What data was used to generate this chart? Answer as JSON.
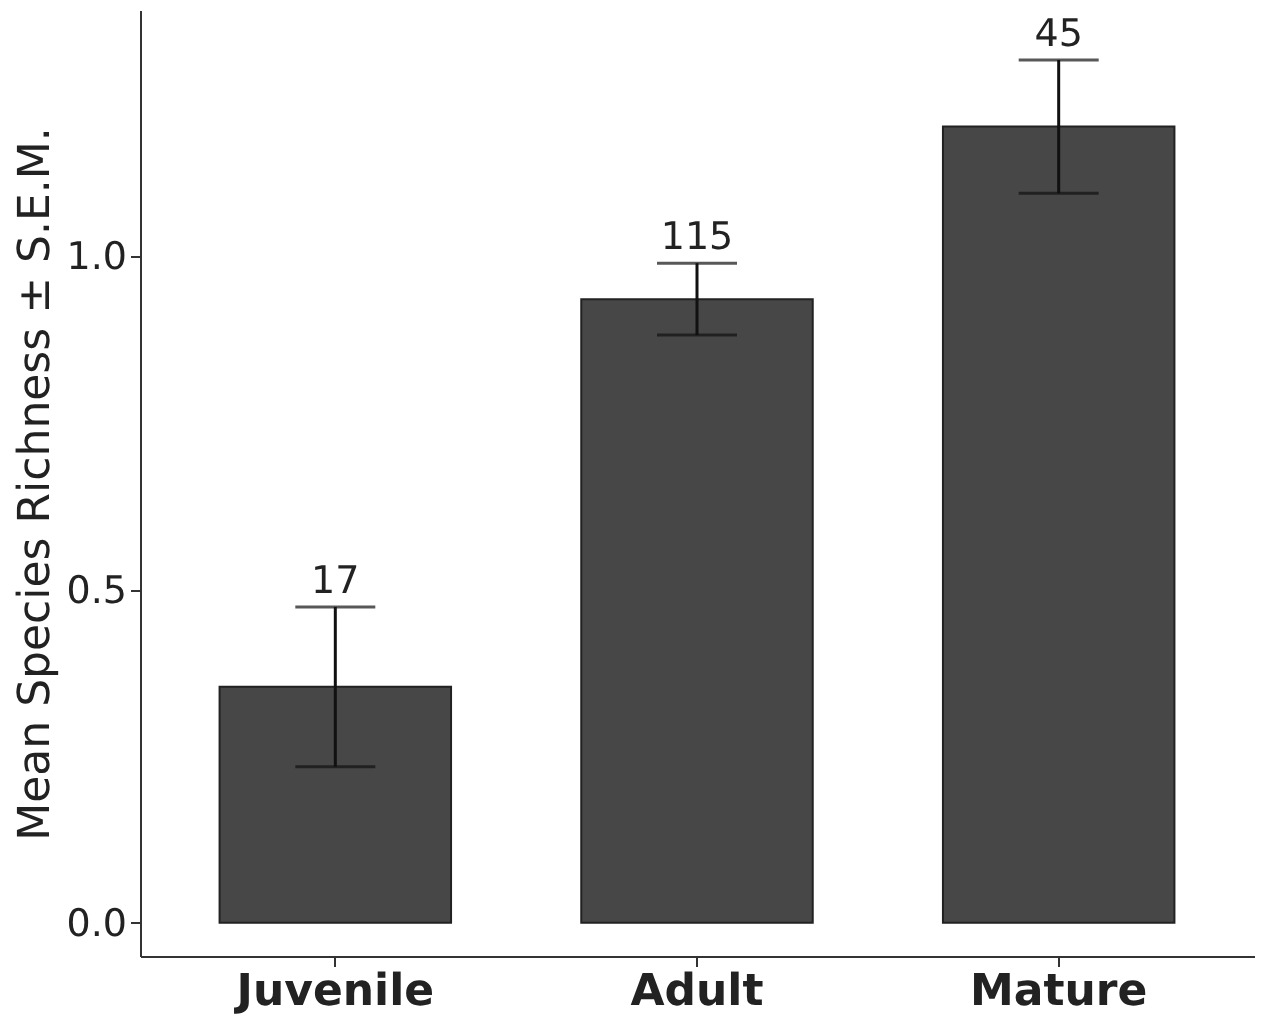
{
  "chart_data": {
    "type": "bar",
    "ylabel": "Mean Species Richness ± S.E.M.",
    "categories": [
      "Juvenile",
      "Adult",
      "Mature"
    ],
    "values": [
      0.354,
      0.936,
      1.195
    ],
    "errors": [
      0.12,
      0.054,
      0.1
    ],
    "color": "#474747",
    "ylim": [
      -0.05,
      1.37
    ],
    "yticks": [
      {
        "value": 0,
        "label": "0.0"
      },
      0.5,
      {
        "value": 1,
        "label": "1.0"
      }
    ],
    "annotations": [
      {
        "text": "17",
        "x": "Juvenile",
        "y": 0.474
      },
      {
        "text": "115",
        "x": "Adult",
        "y": 0.99
      },
      {
        "text": "45",
        "x": "Mature",
        "y": 1.295
      }
    ],
    "grid": false
  }
}
